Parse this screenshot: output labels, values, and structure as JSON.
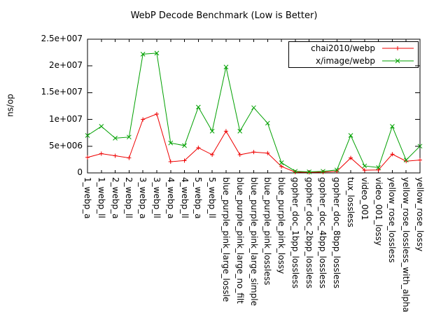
{
  "chart_data": {
    "type": "line",
    "title": "WebP Decode Benchmark (Low is Better)",
    "xlabel": "",
    "ylabel": "ns/op",
    "ylim": [
      0,
      25000000
    ],
    "ytick_values": [
      0,
      5000000,
      10000000,
      15000000,
      20000000,
      25000000
    ],
    "ytick_labels": [
      "0",
      "5e+006",
      "1e+007",
      "1.5e+007",
      "2e+007",
      "2.5e+007"
    ],
    "grid": false,
    "legend_position": "top-right",
    "categories": [
      "1_webp_a",
      "1_webp_ll",
      "2_webp_a",
      "2_webp_ll",
      "3_webp_a",
      "3_webp_ll",
      "4_webp_a",
      "4_webp_ll",
      "5_webp_a",
      "5_webp_ll",
      "blue_purple_pink_large_lossle",
      "blue_purple_pink_large_no_filt",
      "blue_purple_pink_large_simple",
      "blue_purple_pink_lossless",
      "blue_purple_pink_lossy",
      "gopher_doc_1bpp_lossless",
      "gopher_doc_2bpp_lossless",
      "gopher_doc_4bpp_lossless",
      "gopher_doc_8bpp_lossless",
      "tux_lossless",
      "video_001",
      "video_001_lossy",
      "yellow_rose_lossless",
      "yellow_rose_lossless_with_alpha",
      "yellow_rose_lossy"
    ],
    "series": [
      {
        "name": "chai2010/webp",
        "color": "#ee0000",
        "marker": "plus",
        "values": [
          2900000,
          3600000,
          3200000,
          2800000,
          10000000,
          11000000,
          2100000,
          2300000,
          4700000,
          3400000,
          7800000,
          3400000,
          3900000,
          3700000,
          1200000,
          150000,
          100000,
          150000,
          300000,
          2800000,
          500000,
          550000,
          3500000,
          2200000,
          2400000
        ]
      },
      {
        "name": "x/image/webp",
        "color": "#00a000",
        "marker": "cross",
        "values": [
          7000000,
          8700000,
          6500000,
          6700000,
          22200000,
          22400000,
          5600000,
          5100000,
          12300000,
          7800000,
          19800000,
          7800000,
          12200000,
          9300000,
          1900000,
          300000,
          200000,
          300000,
          550000,
          7000000,
          1300000,
          1000000,
          8700000,
          2400000,
          5000000
        ]
      }
    ]
  }
}
